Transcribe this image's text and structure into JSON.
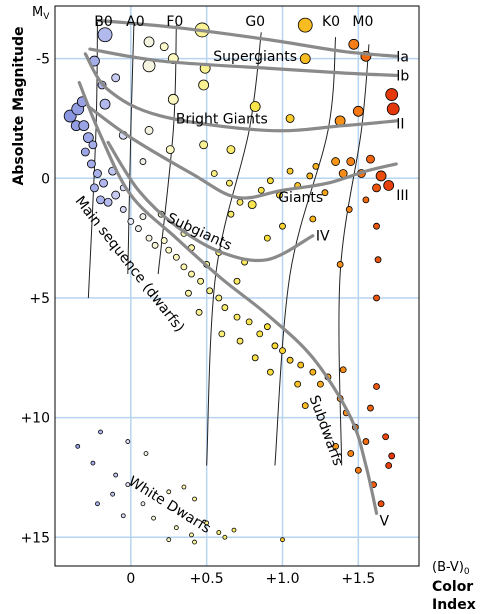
{
  "chart_data": {
    "type": "scatter",
    "y_axis_symbol": "M",
    "y_axis_symbol_sub": "V",
    "ylabel": "Absolute Magnitude",
    "xlabel_top": "(B-V)",
    "xlabel_top_sub": "0",
    "xlabel_line1": "Color",
    "xlabel_line2": "Index",
    "xlim": [
      -0.5,
      1.9
    ],
    "ylim": [
      -7.2,
      16.2
    ],
    "y_inverted": true,
    "grid": true,
    "x_ticks": [
      {
        "value": 0,
        "label": "0"
      },
      {
        "value": 0.5,
        "label": "+0.5"
      },
      {
        "value": 1.0,
        "label": "+1.0"
      },
      {
        "value": 1.5,
        "label": "+1.5"
      }
    ],
    "y_ticks": [
      {
        "value": -5,
        "label": "-5"
      },
      {
        "value": 0,
        "label": "0"
      },
      {
        "value": 5,
        "label": "+5"
      },
      {
        "value": 10,
        "label": "+10"
      },
      {
        "value": 15,
        "label": "+15"
      }
    ],
    "spectral_types": [
      {
        "label": "B0",
        "x": -0.18
      },
      {
        "label": "A0",
        "x": 0.03
      },
      {
        "label": "F0",
        "x": 0.29
      },
      {
        "label": "G0",
        "x": 0.82
      },
      {
        "label": "K0",
        "x": 1.32
      },
      {
        "label": "M0",
        "x": 1.53
      }
    ],
    "spectral_lines": [
      [
        [
          -0.22,
          -6.6
        ],
        [
          -0.23,
          -2
        ],
        [
          -0.28,
          5
        ]
      ],
      [
        [
          0.02,
          -6.4
        ],
        [
          0.0,
          -2
        ],
        [
          -0.02,
          4
        ]
      ],
      [
        [
          0.3,
          -6.4
        ],
        [
          0.28,
          -2
        ],
        [
          0.18,
          4
        ]
      ],
      [
        [
          0.86,
          -6.1
        ],
        [
          0.78,
          -2
        ],
        [
          0.56,
          4
        ],
        [
          0.5,
          12
        ]
      ],
      [
        [
          1.35,
          -5.9
        ],
        [
          1.3,
          -2
        ],
        [
          1.05,
          4
        ],
        [
          0.95,
          12
        ]
      ],
      [
        [
          1.57,
          -5.6
        ],
        [
          1.52,
          -2
        ],
        [
          1.38,
          4
        ],
        [
          1.39,
          12
        ]
      ]
    ],
    "luminosity_classes": [
      {
        "label": "Ia",
        "label_x": 1.73,
        "label_y": -5.1,
        "points": [
          [
            -0.22,
            -6.6
          ],
          [
            0.3,
            -6.3
          ],
          [
            0.9,
            -5.8
          ],
          [
            1.4,
            -5.3
          ],
          [
            1.75,
            -5.1
          ]
        ]
      },
      {
        "label": "Ib",
        "label_x": 1.73,
        "label_y": -4.3,
        "points": [
          [
            -0.27,
            -5.4
          ],
          [
            0.2,
            -4.9
          ],
          [
            0.9,
            -4.6
          ],
          [
            1.4,
            -4.4
          ],
          [
            1.75,
            -4.3
          ]
        ]
      },
      {
        "label": "II",
        "label_x": 1.73,
        "label_y": -2.3,
        "points": [
          [
            -0.3,
            -5.2
          ],
          [
            -0.15,
            -3.7
          ],
          [
            0.2,
            -2.6
          ],
          [
            0.9,
            -2.0
          ],
          [
            1.4,
            -2.2
          ],
          [
            1.75,
            -2.4
          ]
        ]
      },
      {
        "label": "III",
        "label_x": 1.73,
        "label_y": 0.7,
        "points": [
          [
            -0.28,
            -3.0
          ],
          [
            0.0,
            -1.7
          ],
          [
            0.4,
            -0.2
          ],
          [
            0.7,
            0.8
          ],
          [
            1.0,
            0.5
          ],
          [
            1.3,
            0.2
          ],
          [
            1.55,
            -0.3
          ],
          [
            1.75,
            -0.6
          ]
        ]
      },
      {
        "label": "IV",
        "label_x": 1.2,
        "label_y": 2.4,
        "points": [
          [
            -0.15,
            -1.5
          ],
          [
            0.05,
            0.5
          ],
          [
            0.3,
            2.0
          ],
          [
            0.6,
            3.1
          ],
          [
            0.9,
            3.4
          ],
          [
            1.2,
            2.4
          ]
        ]
      },
      {
        "label": "V",
        "label_x": 1.62,
        "label_y": 14.3,
        "points": [
          [
            -0.34,
            -4.0
          ],
          [
            -0.2,
            -1.8
          ],
          [
            0.0,
            0.7
          ],
          [
            0.3,
            2.5
          ],
          [
            0.6,
            4.2
          ],
          [
            0.9,
            5.7
          ],
          [
            1.2,
            7.5
          ],
          [
            1.45,
            10.0
          ],
          [
            1.55,
            12.0
          ],
          [
            1.62,
            14.0
          ]
        ]
      }
    ],
    "regions": [
      {
        "label": "Supergiants",
        "x": 0.82,
        "y": -4.9,
        "rotate": 0
      },
      {
        "label": "Bright Giants",
        "x": 0.6,
        "y": -2.3,
        "rotate": 0
      },
      {
        "label": "Giants",
        "x": 1.12,
        "y": 1.0,
        "rotate": 0
      },
      {
        "label": "Subgiants",
        "x": 0.44,
        "y": 2.4,
        "rotate": 25
      },
      {
        "label": "Main sequence (dwarfs)",
        "x": -0.03,
        "y": 3.7,
        "rotate": 52
      },
      {
        "label": "Subdwarfs",
        "x": 1.26,
        "y": 10.6,
        "rotate": 70
      },
      {
        "label": "White Dwarfs",
        "x": 0.24,
        "y": 13.8,
        "rotate": 32
      }
    ],
    "stars": [
      {
        "x": -0.4,
        "y": -2.6,
        "s": 6
      },
      {
        "x": -0.35,
        "y": -2.9,
        "s": 6
      },
      {
        "x": -0.32,
        "y": -3.2,
        "s": 5
      },
      {
        "x": -0.36,
        "y": -2.2,
        "s": 5
      },
      {
        "x": -0.31,
        "y": -2.2,
        "s": 5
      },
      {
        "x": -0.28,
        "y": -1.7,
        "s": 5
      },
      {
        "x": -0.3,
        "y": -1.1,
        "s": 4
      },
      {
        "x": -0.25,
        "y": -1.4,
        "s": 4
      },
      {
        "x": -0.26,
        "y": -0.6,
        "s": 4
      },
      {
        "x": -0.22,
        "y": -0.2,
        "s": 4
      },
      {
        "x": -0.24,
        "y": 0.4,
        "s": 4
      },
      {
        "x": -0.18,
        "y": 0.2,
        "s": 4
      },
      {
        "x": -0.2,
        "y": 0.9,
        "s": 4
      },
      {
        "x": -0.15,
        "y": 1.0,
        "s": 4
      },
      {
        "x": -0.12,
        "y": -0.3,
        "s": 4
      },
      {
        "x": -0.1,
        "y": 0.7,
        "s": 4
      },
      {
        "x": -0.24,
        "y": -4.9,
        "s": 5
      },
      {
        "x": -0.19,
        "y": -3.9,
        "s": 4
      },
      {
        "x": -0.17,
        "y": -6.0,
        "s": 7
      },
      {
        "x": -0.05,
        "y": -1.8,
        "s": 4
      },
      {
        "x": -0.05,
        "y": 1.3,
        "s": 3
      },
      {
        "x": 0.0,
        "y": 1.8,
        "s": 3
      },
      {
        "x": 0.05,
        "y": 2.1,
        "s": 3
      },
      {
        "x": 0.08,
        "y": 1.6,
        "s": 3
      },
      {
        "x": 0.12,
        "y": 2.5,
        "s": 3
      },
      {
        "x": 0.16,
        "y": 2.8,
        "s": 3
      },
      {
        "x": 0.22,
        "y": 2.6,
        "s": 3
      },
      {
        "x": 0.25,
        "y": 3.0,
        "s": 3
      },
      {
        "x": 0.3,
        "y": 3.3,
        "s": 3
      },
      {
        "x": 0.35,
        "y": 3.7,
        "s": 3
      },
      {
        "x": 0.4,
        "y": 4.0,
        "s": 3
      },
      {
        "x": 0.46,
        "y": 4.3,
        "s": 3
      },
      {
        "x": 0.52,
        "y": 4.7,
        "s": 3
      },
      {
        "x": 0.58,
        "y": 5.0,
        "s": 3
      },
      {
        "x": 0.62,
        "y": 5.4,
        "s": 3
      },
      {
        "x": 0.7,
        "y": 5.8,
        "s": 3
      },
      {
        "x": 0.78,
        "y": 6.0,
        "s": 3
      },
      {
        "x": 0.85,
        "y": 6.5,
        "s": 3
      },
      {
        "x": 0.9,
        "y": 6.2,
        "s": 3
      },
      {
        "x": 0.95,
        "y": 7.0,
        "s": 3
      },
      {
        "x": 1.0,
        "y": 7.2,
        "s": 3
      },
      {
        "x": 1.05,
        "y": 7.6,
        "s": 3
      },
      {
        "x": 1.12,
        "y": 7.8,
        "s": 3
      },
      {
        "x": 1.2,
        "y": 8.1,
        "s": 3
      },
      {
        "x": 1.25,
        "y": 8.6,
        "s": 3
      },
      {
        "x": 1.3,
        "y": 8.3,
        "s": 3
      },
      {
        "x": 1.38,
        "y": 9.2,
        "s": 3
      },
      {
        "x": 1.42,
        "y": 9.8,
        "s": 3
      },
      {
        "x": 1.48,
        "y": 10.4,
        "s": 3
      },
      {
        "x": 1.55,
        "y": 11.0,
        "s": 3
      },
      {
        "x": 1.5,
        "y": 12.2,
        "s": 3
      },
      {
        "x": 1.6,
        "y": 12.8,
        "s": 3
      },
      {
        "x": 1.65,
        "y": 13.6,
        "s": 3
      },
      {
        "x": 1.7,
        "y": 12.0,
        "s": 3
      },
      {
        "x": 1.68,
        "y": 10.8,
        "s": 3
      },
      {
        "x": 1.72,
        "y": 11.6,
        "s": 3
      },
      {
        "x": 1.58,
        "y": 9.6,
        "s": 3
      },
      {
        "x": 1.62,
        "y": 8.7,
        "s": 3
      },
      {
        "x": 1.4,
        "y": 8.0,
        "s": 3
      },
      {
        "x": 1.45,
        "y": 11.5,
        "s": 3
      },
      {
        "x": 1.35,
        "y": 11.2,
        "s": 3
      },
      {
        "x": 1.15,
        "y": 9.5,
        "s": 3
      },
      {
        "x": 1.1,
        "y": 8.6,
        "s": 3
      },
      {
        "x": 0.92,
        "y": 8.1,
        "s": 3
      },
      {
        "x": 0.82,
        "y": 7.5,
        "s": 3
      },
      {
        "x": 0.72,
        "y": 6.8,
        "s": 3
      },
      {
        "x": 0.6,
        "y": 6.5,
        "s": 3
      },
      {
        "x": 0.45,
        "y": 5.6,
        "s": 3
      },
      {
        "x": 0.38,
        "y": 4.8,
        "s": 3
      },
      {
        "x": 0.5,
        "y": 3.6,
        "s": 3
      },
      {
        "x": 0.58,
        "y": 3.1,
        "s": 3
      },
      {
        "x": 0.66,
        "y": 1.5,
        "s": 3
      },
      {
        "x": 0.72,
        "y": 1.0,
        "s": 3
      },
      {
        "x": 0.8,
        "y": 1.1,
        "s": 4
      },
      {
        "x": 0.86,
        "y": 0.5,
        "s": 3
      },
      {
        "x": 0.92,
        "y": 0.1,
        "s": 3
      },
      {
        "x": 0.98,
        "y": 0.7,
        "s": 3
      },
      {
        "x": 1.05,
        "y": -0.3,
        "s": 3
      },
      {
        "x": 1.1,
        "y": 0.3,
        "s": 3
      },
      {
        "x": 1.18,
        "y": -0.1,
        "s": 3
      },
      {
        "x": 1.22,
        "y": -0.5,
        "s": 3
      },
      {
        "x": 1.28,
        "y": 0.6,
        "s": 3
      },
      {
        "x": 1.35,
        "y": -0.7,
        "s": 4
      },
      {
        "x": 1.4,
        "y": -0.2,
        "s": 4
      },
      {
        "x": 1.45,
        "y": -0.7,
        "s": 4
      },
      {
        "x": 1.52,
        "y": -0.2,
        "s": 4
      },
      {
        "x": 1.58,
        "y": -0.8,
        "s": 4
      },
      {
        "x": 1.62,
        "y": 0.4,
        "s": 4
      },
      {
        "x": 1.65,
        "y": -0.1,
        "s": 5
      },
      {
        "x": 1.7,
        "y": 0.3,
        "s": 5
      },
      {
        "x": 1.55,
        "y": 0.9,
        "s": 3
      },
      {
        "x": 1.62,
        "y": 2.0,
        "s": 3
      },
      {
        "x": 1.63,
        "y": 3.4,
        "s": 3
      },
      {
        "x": 1.62,
        "y": 5.0,
        "s": 3
      },
      {
        "x": 1.44,
        "y": 1.3,
        "s": 3
      },
      {
        "x": 1.38,
        "y": 3.6,
        "s": 3
      },
      {
        "x": 1.2,
        "y": 1.7,
        "s": 3
      },
      {
        "x": 1.0,
        "y": 2.0,
        "s": 3
      },
      {
        "x": 0.9,
        "y": 2.5,
        "s": 3
      },
      {
        "x": 1.05,
        "y": -2.5,
        "s": 4
      },
      {
        "x": 1.38,
        "y": -2.4,
        "s": 5
      },
      {
        "x": 1.5,
        "y": -2.8,
        "s": 5
      },
      {
        "x": 1.72,
        "y": -3.5,
        "s": 6
      },
      {
        "x": 1.73,
        "y": -2.9,
        "s": 6
      },
      {
        "x": 1.55,
        "y": -5.1,
        "s": 5
      },
      {
        "x": 1.47,
        "y": -5.6,
        "s": 5
      },
      {
        "x": 1.15,
        "y": -5.0,
        "s": 5
      },
      {
        "x": 1.15,
        "y": -6.4,
        "s": 7
      },
      {
        "x": 0.82,
        "y": -3.0,
        "s": 5
      },
      {
        "x": 0.48,
        "y": -3.9,
        "s": 5
      },
      {
        "x": 0.49,
        "y": -4.6,
        "s": 5
      },
      {
        "x": 0.47,
        "y": -6.2,
        "s": 7
      },
      {
        "x": 0.28,
        "y": -5.0,
        "s": 5
      },
      {
        "x": 0.28,
        "y": -3.3,
        "s": 5
      },
      {
        "x": 0.26,
        "y": -1.2,
        "s": 4
      },
      {
        "x": 0.48,
        "y": -1.4,
        "s": 4
      },
      {
        "x": 0.66,
        "y": -1.2,
        "s": 4
      },
      {
        "x": 0.12,
        "y": -4.7,
        "s": 6
      },
      {
        "x": 0.12,
        "y": -5.7,
        "s": 5
      },
      {
        "x": 0.22,
        "y": -5.5,
        "s": 4
      },
      {
        "x": -0.17,
        "y": -3.1,
        "s": 5
      },
      {
        "x": -0.1,
        "y": -4.2,
        "s": 4
      },
      {
        "x": 0.12,
        "y": -2.0,
        "s": 4
      },
      {
        "x": 0.55,
        "y": -0.2,
        "s": 3
      },
      {
        "x": 0.65,
        "y": 0.2,
        "s": 3
      },
      {
        "x": 0.7,
        "y": 4.3,
        "s": 3
      },
      {
        "x": 0.75,
        "y": 3.5,
        "s": 3
      },
      {
        "x": 0.4,
        "y": 2.9,
        "s": 3
      },
      {
        "x": 0.35,
        "y": 2.3,
        "s": 3
      },
      {
        "x": 0.2,
        "y": 1.5,
        "s": 3
      },
      {
        "x": -0.05,
        "y": 0.4,
        "s": 3
      },
      {
        "x": 0.08,
        "y": -0.7,
        "s": 3
      },
      {
        "x": -0.35,
        "y": 11.2,
        "s": 2
      },
      {
        "x": -0.2,
        "y": 10.6,
        "s": 2
      },
      {
        "x": -0.02,
        "y": 11.0,
        "s": 2
      },
      {
        "x": -0.25,
        "y": 11.9,
        "s": 2
      },
      {
        "x": -0.1,
        "y": 12.4,
        "s": 2
      },
      {
        "x": -0.12,
        "y": 13.2,
        "s": 2
      },
      {
        "x": -0.02,
        "y": 12.8,
        "s": 2
      },
      {
        "x": -0.05,
        "y": 14.1,
        "s": 2
      },
      {
        "x": 0.08,
        "y": 13.6,
        "s": 2
      },
      {
        "x": 0.15,
        "y": 14.2,
        "s": 2
      },
      {
        "x": 0.25,
        "y": 13.1,
        "s": 2
      },
      {
        "x": 0.35,
        "y": 12.9,
        "s": 2
      },
      {
        "x": 0.42,
        "y": 13.4,
        "s": 2
      },
      {
        "x": 0.3,
        "y": 14.6,
        "s": 2
      },
      {
        "x": 0.4,
        "y": 14.9,
        "s": 2
      },
      {
        "x": 0.5,
        "y": 14.4,
        "s": 2
      },
      {
        "x": 0.58,
        "y": 14.8,
        "s": 2
      },
      {
        "x": 0.68,
        "y": 14.7,
        "s": 2
      },
      {
        "x": 0.25,
        "y": 15.1,
        "s": 2
      },
      {
        "x": 0.42,
        "y": 15.2,
        "s": 2
      },
      {
        "x": 0.62,
        "y": 15.0,
        "s": 2
      },
      {
        "x": -0.22,
        "y": 13.6,
        "s": 2
      },
      {
        "x": 0.1,
        "y": 11.5,
        "s": 2
      },
      {
        "x": 1.0,
        "y": 15.1,
        "s": 2
      }
    ]
  }
}
